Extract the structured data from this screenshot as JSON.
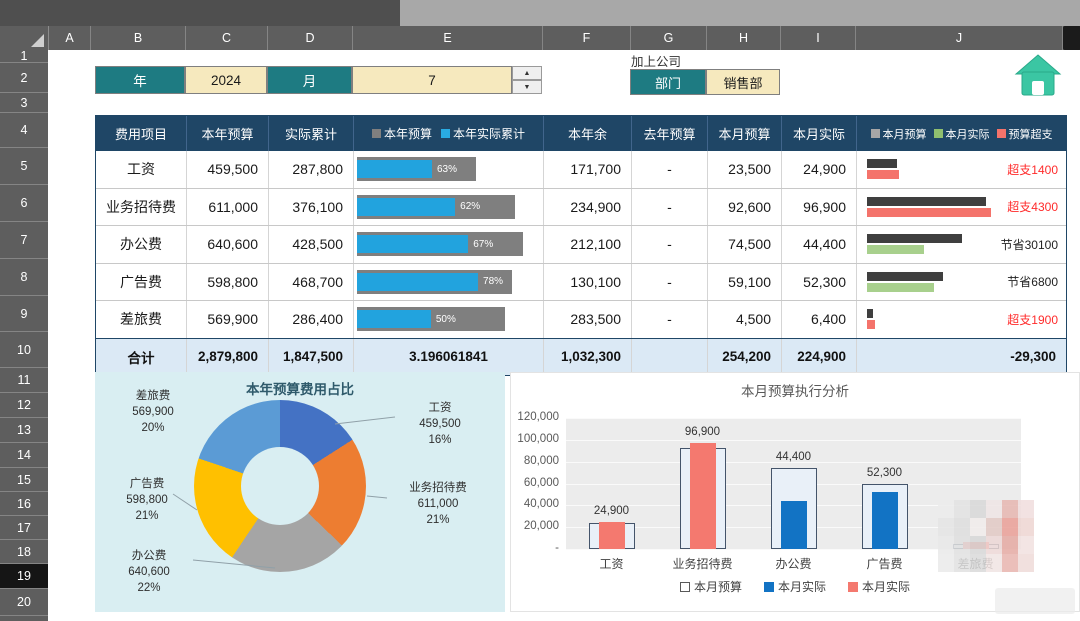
{
  "grid": {
    "column_headers": [
      "A",
      "B",
      "C",
      "D",
      "E",
      "F",
      "G",
      "H",
      "I",
      "J"
    ],
    "row_numbers": [
      "1",
      "2",
      "3",
      "4",
      "5",
      "6",
      "7",
      "8",
      "9",
      "10",
      "11",
      "12",
      "13",
      "14",
      "15",
      "16",
      "17",
      "18",
      "19",
      "20"
    ],
    "active_row": "19"
  },
  "controls": {
    "year_label": "年",
    "year_value": "2024",
    "month_label": "月",
    "month_value": "7",
    "note": "加上公司",
    "dept_label": "部门",
    "dept_value": "销售部"
  },
  "icons": {
    "home": "home"
  },
  "colors": {
    "teal": "#1E7B82",
    "cream": "#F6E9BE",
    "header_navy": "#1F4666",
    "progress_track": "#7F7F7F",
    "progress_fill": "#22A3DE",
    "total_row_bg": "#DBE9F5",
    "over_text": "#FF2B2B",
    "mini_budget": "#3F3F3F",
    "mini_under": "#A8D08D",
    "mini_over": "#F4736B",
    "home_icon": "#3BC6A3"
  },
  "table": {
    "columns": [
      "费用项目",
      "本年预算",
      "实际累计",
      "",
      "本年余",
      "去年预算",
      "本月预算",
      "本月实际",
      ""
    ],
    "annual_legend": [
      {
        "label": "本年预算",
        "color": "#7F7F7F"
      },
      {
        "label": "本年实际累计",
        "color": "#29ABE2"
      }
    ],
    "month_legend": [
      {
        "label": "本月预算",
        "color": "#A6A6A6"
      },
      {
        "label": "本月实际",
        "color": "#8FBF6F"
      },
      {
        "label": "预算超支",
        "color": "#F4736B"
      }
    ],
    "rows": [
      {
        "name": "工资",
        "annual_budget": "459,500",
        "annual_budget_value": 459500,
        "actual_cum": "287,800",
        "pct": "63%",
        "pct_value": 63,
        "remaining": "171,700",
        "last_year": "-",
        "month_budget": "23,500",
        "month_budget_value": 23500,
        "month_actual": "24,900",
        "month_actual_value": 24900,
        "variance": "超支1400",
        "variance_type": "over"
      },
      {
        "name": "业务招待费",
        "annual_budget": "611,000",
        "annual_budget_value": 611000,
        "actual_cum": "376,100",
        "pct": "62%",
        "pct_value": 62,
        "remaining": "234,900",
        "last_year": "-",
        "month_budget": "92,600",
        "month_budget_value": 92600,
        "month_actual": "96,900",
        "month_actual_value": 96900,
        "variance": "超支4300",
        "variance_type": "over"
      },
      {
        "name": "办公费",
        "annual_budget": "640,600",
        "annual_budget_value": 640600,
        "actual_cum": "428,500",
        "pct": "67%",
        "pct_value": 67,
        "remaining": "212,100",
        "last_year": "-",
        "month_budget": "74,500",
        "month_budget_value": 74500,
        "month_actual": "44,400",
        "month_actual_value": 44400,
        "variance": "节省30100",
        "variance_type": "save"
      },
      {
        "name": "广告费",
        "annual_budget": "598,800",
        "annual_budget_value": 598800,
        "actual_cum": "468,700",
        "pct": "78%",
        "pct_value": 78,
        "remaining": "130,100",
        "last_year": "-",
        "month_budget": "59,100",
        "month_budget_value": 59100,
        "month_actual": "52,300",
        "month_actual_value": 52300,
        "variance": "节省6800",
        "variance_type": "save"
      },
      {
        "name": "差旅费",
        "annual_budget": "569,900",
        "annual_budget_value": 569900,
        "actual_cum": "286,400",
        "pct": "50%",
        "pct_value": 50,
        "remaining": "283,500",
        "last_year": "-",
        "month_budget": "4,500",
        "month_budget_value": 4500,
        "month_actual": "6,400",
        "month_actual_value": 6400,
        "variance": "超支1900",
        "variance_type": "over"
      }
    ],
    "total": {
      "name": "合计",
      "annual_budget": "2,879,800",
      "actual_cum": "1,847,500",
      "pct_raw": "3.196061841",
      "remaining": "1,032,300",
      "last_year": "",
      "month_budget": "254,200",
      "month_actual": "224,900",
      "variance": "-29,300"
    }
  },
  "chart_data": [
    {
      "type": "pie",
      "subtype": "donut",
      "title": "本年预算费用占比",
      "labels": [
        "工资",
        "业务招待费",
        "办公费",
        "广告费",
        "差旅费"
      ],
      "values": [
        459500,
        611000,
        640600,
        598800,
        569900
      ],
      "value_labels": [
        "459,500",
        "611,000",
        "640,600",
        "598,800",
        "569,900"
      ],
      "percent_labels": [
        "16%",
        "21%",
        "22%",
        "21%",
        "20%"
      ],
      "colors": [
        "#4472C4",
        "#ED7D31",
        "#A5A5A5",
        "#FFC000",
        "#5B9BD5"
      ],
      "background": "#D9EEF2",
      "legend_position": "none"
    },
    {
      "type": "bar",
      "title": "本月预算执行分析",
      "categories": [
        "工资",
        "业务招待费",
        "办公费",
        "广告费",
        "差旅费"
      ],
      "series": [
        {
          "name": "本月预算",
          "values": [
            23500,
            92600,
            74500,
            59100,
            4500
          ]
        },
        {
          "name": "本月实际",
          "values": [
            24900,
            96900,
            44400,
            52300,
            6400
          ]
        }
      ],
      "data_labels": [
        "24,900",
        "96,900",
        "44,400",
        "52,300",
        ""
      ],
      "ylim": [
        0,
        120000
      ],
      "ytick_labels": [
        "-",
        "20,000",
        "40,000",
        "60,000",
        "80,000",
        "100,000",
        "120,000"
      ],
      "grid": true,
      "legend_position": "bottom",
      "legend": [
        {
          "label": "本月预算",
          "swatch": "outline"
        },
        {
          "label": "本月实际",
          "swatch": "#1273C4"
        },
        {
          "label": "本月实际",
          "swatch": "#F4796F"
        }
      ],
      "budget_fill": "#E9F0F8",
      "budget_border": "#44546A",
      "under_color": "#1273C4",
      "over_color": "#F4796F"
    }
  ]
}
